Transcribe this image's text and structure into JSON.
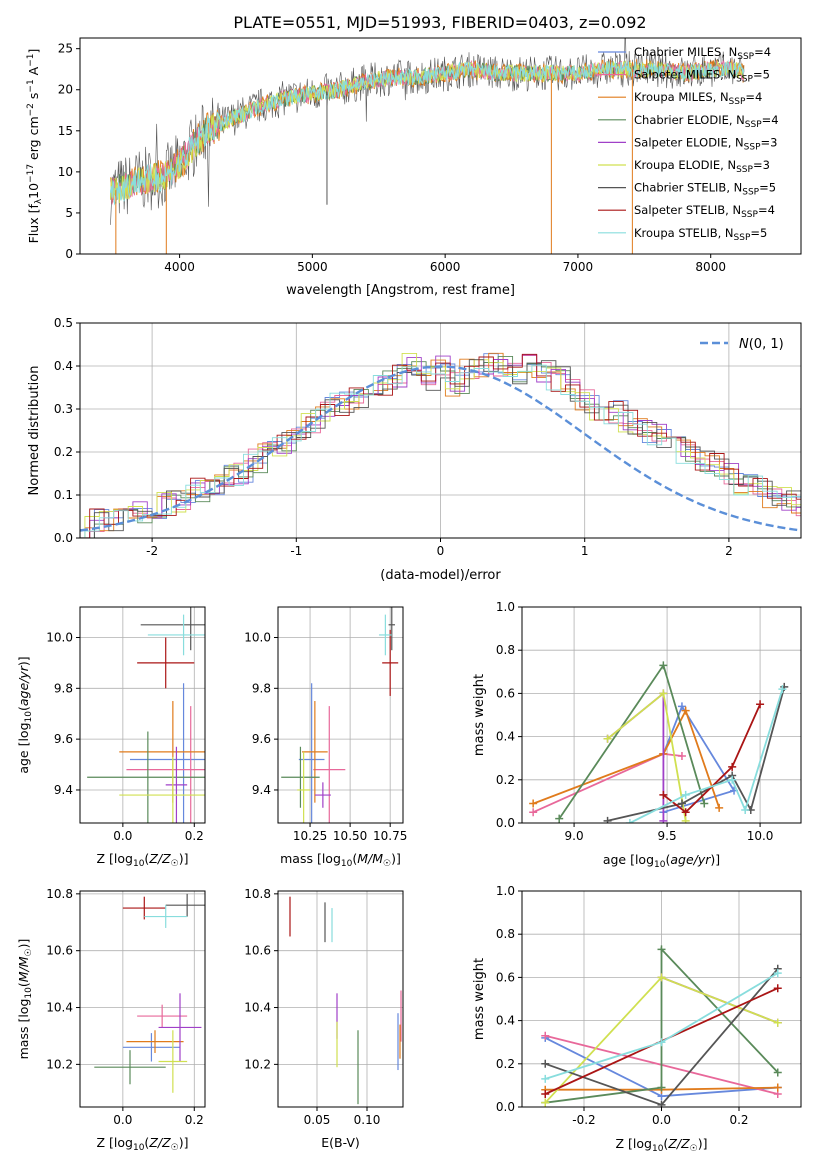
{
  "figure_title": "PLATE=0551, MJD=51993, FIBERID=0403, z=0.092",
  "colors": {
    "Chabrier MILES": "#6688dd",
    "Salpeter MILES": "#e8689a",
    "Kroupa MILES": "#e07b1c",
    "Chabrier ELODIE": "#5a8a5a",
    "Salpeter ELODIE": "#a040c8",
    "Kroupa ELODIE": "#d0e050",
    "Chabrier STELIB": "#555555",
    "Salpeter STELIB": "#aa1515",
    "Kroupa STELIB": "#88dddd",
    "normal_curve": "#5b8fd8"
  },
  "chart_data": [
    {
      "type": "line",
      "panel": "spectrum",
      "xlabel": "wavelength [Angstrom, rest frame]",
      "ylabel": "Flux [f_λ 10^-17 erg cm^-2 s^-1 A^-1]",
      "xlim": [
        3250,
        8680
      ],
      "ylim": [
        0,
        26.3
      ],
      "xticks": [
        4000,
        5000,
        6000,
        7000,
        8000
      ],
      "yticks": [
        0,
        5,
        10,
        15,
        20,
        25
      ],
      "grid": false,
      "legend_position": "top-right",
      "legend": [
        {
          "label": "Chabrier MILES, N",
          "sub": "SSP",
          "suffix": "=4"
        },
        {
          "label": "Salpeter MILES, N",
          "sub": "SSP",
          "suffix": "=5"
        },
        {
          "label": "Kroupa MILES, N",
          "sub": "SSP",
          "suffix": "=4"
        },
        {
          "label": "Chabrier ELODIE, N",
          "sub": "SSP",
          "suffix": "=4"
        },
        {
          "label": "Salpeter ELODIE, N",
          "sub": "SSP",
          "suffix": "=3"
        },
        {
          "label": "Kroupa ELODIE, N",
          "sub": "SSP",
          "suffix": "=3"
        },
        {
          "label": "Chabrier STELIB, N",
          "sub": "SSP",
          "suffix": "=5"
        },
        {
          "label": "Salpeter STELIB, N",
          "sub": "SSP",
          "suffix": "=4"
        },
        {
          "label": "Kroupa STELIB, N",
          "sub": "SSP",
          "suffix": "=5"
        }
      ],
      "continuum": {
        "x": [
          3480,
          3700,
          3900,
          4000,
          4200,
          4400,
          4600,
          4800,
          5000,
          5200,
          5400,
          5600,
          5800,
          6000,
          6200,
          6400,
          6600,
          6800,
          7000,
          7200,
          7400,
          7600,
          7800,
          8000,
          8200,
          8250
        ],
        "y": [
          7.5,
          9,
          9.5,
          11,
          15,
          16.5,
          18,
          19,
          19.5,
          20,
          21,
          21.5,
          21.5,
          22,
          22.5,
          22,
          22,
          22,
          22,
          22.5,
          22.5,
          22.5,
          22,
          22.5,
          22.5,
          22
        ]
      }
    },
    {
      "type": "histogram",
      "panel": "residuals",
      "xlabel": "(data-model)/error",
      "ylabel": "Normed distribution",
      "xlim": [
        -2.5,
        2.5
      ],
      "ylim": [
        0,
        0.5
      ],
      "xticks": [
        -2,
        -1,
        0,
        1,
        2
      ],
      "yticks": [
        0.0,
        0.1,
        0.2,
        0.3,
        0.4,
        0.5
      ],
      "grid": true,
      "legend_position": "top-right",
      "legend": [
        {
          "label": "N(0,1)"
        }
      ],
      "bin_width": 0.1,
      "reference_bins": {
        "x_start": -2.5,
        "values": [
          0.03,
          0.04,
          0.04,
          0.05,
          0.06,
          0.07,
          0.08,
          0.09,
          0.11,
          0.12,
          0.14,
          0.15,
          0.18,
          0.2,
          0.22,
          0.25,
          0.27,
          0.3,
          0.31,
          0.32,
          0.35,
          0.36,
          0.38,
          0.4,
          0.37,
          0.4,
          0.36,
          0.39,
          0.4,
          0.4,
          0.38,
          0.4,
          0.39,
          0.37,
          0.34,
          0.32,
          0.3,
          0.29,
          0.27,
          0.25,
          0.24,
          0.22,
          0.2,
          0.18,
          0.17,
          0.15,
          0.13,
          0.12,
          0.1,
          0.09,
          0.08,
          0.07,
          0.06,
          0.05,
          0.04,
          0.03,
          0.03
        ]
      }
    },
    {
      "type": "scatter",
      "panel": "age-vs-Z",
      "xlabel": "Z [log10(Z/Z☉)]",
      "ylabel": "age [log10(age/yr)]",
      "xlim": [
        -0.12,
        0.23
      ],
      "ylim": [
        9.27,
        10.12
      ],
      "xticks": [
        0.0,
        0.2
      ],
      "yticks": [
        9.4,
        9.6,
        9.8,
        10.0
      ],
      "grid": true,
      "points": [
        {
          "series": "Chabrier MILES",
          "x": 0.17,
          "y": 9.52,
          "xerr": 0.15,
          "yerr": 0.3
        },
        {
          "series": "Salpeter MILES",
          "x": 0.19,
          "y": 9.48,
          "xerr": 0.18,
          "yerr": 0.25
        },
        {
          "series": "Kroupa MILES",
          "x": 0.14,
          "y": 9.55,
          "xerr": 0.15,
          "yerr": 0.2
        },
        {
          "series": "Chabrier ELODIE",
          "x": 0.07,
          "y": 9.45,
          "xerr": 0.17,
          "yerr": 0.18
        },
        {
          "series": "Salpeter ELODIE",
          "x": 0.15,
          "y": 9.42,
          "xerr": 0.03,
          "yerr": 0.15
        },
        {
          "series": "Kroupa ELODIE",
          "x": 0.14,
          "y": 9.38,
          "xerr": 0.15,
          "yerr": 0.15
        },
        {
          "series": "Chabrier STELIB",
          "x": 0.19,
          "y": 10.05,
          "xerr": 0.14,
          "yerr": 0.1
        },
        {
          "series": "Salpeter STELIB",
          "x": 0.12,
          "y": 9.9,
          "xerr": 0.08,
          "yerr": 0.1
        },
        {
          "series": "Kroupa STELIB",
          "x": 0.17,
          "y": 10.01,
          "xerr": 0.1,
          "yerr": 0.08
        }
      ]
    },
    {
      "type": "scatter",
      "panel": "age-vs-mass",
      "xlabel": "mass [log10(M/M☉)]",
      "ylabel": "",
      "xlim": [
        10.05,
        10.83
      ],
      "ylim": [
        9.27,
        10.12
      ],
      "xticks": [
        10.25,
        10.5,
        10.75
      ],
      "yticks": [
        9.4,
        9.6,
        9.8,
        10.0
      ],
      "grid": true,
      "points": [
        {
          "series": "Chabrier MILES",
          "x": 10.26,
          "y": 9.52,
          "xerr": 0.08,
          "yerr": 0.3
        },
        {
          "series": "Salpeter MILES",
          "x": 10.37,
          "y": 9.48,
          "xerr": 0.1,
          "yerr": 0.25
        },
        {
          "series": "Kroupa MILES",
          "x": 10.28,
          "y": 9.55,
          "xerr": 0.08,
          "yerr": 0.2
        },
        {
          "series": "Chabrier ELODIE",
          "x": 10.19,
          "y": 9.45,
          "xerr": 0.12,
          "yerr": 0.12
        },
        {
          "series": "Salpeter ELODIE",
          "x": 10.33,
          "y": 9.38,
          "xerr": 0.05,
          "yerr": 0.05
        },
        {
          "series": "Kroupa ELODIE",
          "x": 10.21,
          "y": 9.4,
          "xerr": 0.04,
          "yerr": 0.15
        },
        {
          "series": "Chabrier STELIB",
          "x": 10.76,
          "y": 10.05,
          "xerr": 0.02,
          "yerr": 0.1
        },
        {
          "series": "Salpeter STELIB",
          "x": 10.75,
          "y": 9.9,
          "xerr": 0.05,
          "yerr": 0.13
        },
        {
          "series": "Kroupa STELIB",
          "x": 10.72,
          "y": 10.01,
          "xerr": 0.04,
          "yerr": 0.08
        }
      ]
    },
    {
      "type": "line",
      "panel": "mass-weight-vs-age",
      "xlabel": "age [log10(age/yr)]",
      "ylabel": "mass weight",
      "xlim": [
        8.72,
        10.22
      ],
      "ylim": [
        0,
        1.0
      ],
      "xticks": [
        9.0,
        9.5,
        10.0
      ],
      "yticks": [
        0.0,
        0.2,
        0.4,
        0.6,
        0.8,
        1.0
      ],
      "grid": true,
      "series": [
        {
          "name": "Chabrier MILES",
          "x": [
            9.48,
            9.58,
            9.86,
            9.48
          ],
          "y": [
            0.32,
            0.54,
            0.15,
            0.05
          ]
        },
        {
          "name": "Salpeter MILES",
          "x": [
            8.78,
            9.48,
            9.58,
            9.48
          ],
          "y": [
            0.05,
            0.32,
            0.31,
            0.32
          ]
        },
        {
          "name": "Kroupa MILES",
          "x": [
            8.78,
            9.48,
            9.6,
            9.78
          ],
          "y": [
            0.09,
            0.32,
            0.52,
            0.07
          ]
        },
        {
          "name": "Chabrier ELODIE",
          "x": [
            8.92,
            9.48,
            9.7
          ],
          "y": [
            0.02,
            0.73,
            0.09
          ]
        },
        {
          "name": "Salpeter ELODIE",
          "x": [
            9.18,
            9.48,
            9.48
          ],
          "y": [
            0.39,
            0.6,
            0.01
          ]
        },
        {
          "name": "Kroupa ELODIE",
          "x": [
            9.18,
            9.48,
            9.6
          ],
          "y": [
            0.39,
            0.6,
            0.01
          ]
        },
        {
          "name": "Chabrier STELIB",
          "x": [
            9.18,
            9.58,
            9.85,
            9.95,
            10.13
          ],
          "y": [
            0.01,
            0.09,
            0.22,
            0.06,
            0.63
          ]
        },
        {
          "name": "Salpeter STELIB",
          "x": [
            9.48,
            9.6,
            9.85,
            10.0
          ],
          "y": [
            0.13,
            0.05,
            0.26,
            0.55
          ]
        },
        {
          "name": "Kroupa STELIB",
          "x": [
            9.3,
            9.6,
            9.85,
            9.92,
            10.12
          ],
          "y": [
            0.0,
            0.13,
            0.2,
            0.06,
            0.62
          ]
        }
      ]
    },
    {
      "type": "scatter",
      "panel": "mass-vs-Z",
      "xlabel": "Z [log10(Z/Z☉)]",
      "ylabel": "mass [log10(M/M☉)]",
      "xlim": [
        -0.12,
        0.23
      ],
      "ylim": [
        10.05,
        10.81
      ],
      "xticks": [
        0.0,
        0.2
      ],
      "yticks": [
        10.2,
        10.4,
        10.6,
        10.8
      ],
      "grid": true,
      "points": [
        {
          "series": "Chabrier MILES",
          "x": 0.08,
          "y": 10.26,
          "xerr": 0.08,
          "yerr": 0.05
        },
        {
          "series": "Salpeter MILES",
          "x": 0.11,
          "y": 10.37,
          "xerr": 0.07,
          "yerr": 0.04
        },
        {
          "series": "Kroupa MILES",
          "x": 0.09,
          "y": 10.28,
          "xerr": 0.08,
          "yerr": 0.04
        },
        {
          "series": "Chabrier ELODIE",
          "x": 0.02,
          "y": 10.19,
          "xerr": 0.1,
          "yerr": 0.06
        },
        {
          "series": "Salpeter ELODIE",
          "x": 0.16,
          "y": 10.33,
          "xerr": 0.06,
          "yerr": 0.12
        },
        {
          "series": "Kroupa ELODIE",
          "x": 0.14,
          "y": 10.21,
          "xerr": 0.04,
          "yerr": 0.11
        },
        {
          "series": "Chabrier STELIB",
          "x": 0.18,
          "y": 10.76,
          "xerr": 0.06,
          "yerr": 0.04
        },
        {
          "series": "Salpeter STELIB",
          "x": 0.06,
          "y": 10.75,
          "xerr": 0.06,
          "yerr": 0.04
        },
        {
          "series": "Kroupa STELIB",
          "x": 0.12,
          "y": 10.72,
          "xerr": 0.06,
          "yerr": 0.04
        }
      ]
    },
    {
      "type": "scatter",
      "panel": "mass-vs-ebv",
      "xlabel": "E(B-V)",
      "ylabel": "",
      "xlim": [
        0.011,
        0.136
      ],
      "ylim": [
        10.05,
        10.81
      ],
      "xticks": [
        0.05,
        0.1
      ],
      "yticks": [
        10.2,
        10.4,
        10.6,
        10.8
      ],
      "grid": true,
      "points": [
        {
          "series": "Chabrier MILES",
          "x": 0.131,
          "y": 10.28,
          "yerr": 0.1
        },
        {
          "series": "Salpeter MILES",
          "x": 0.134,
          "y": 10.37,
          "yerr": 0.09
        },
        {
          "series": "Kroupa MILES",
          "x": 0.133,
          "y": 10.28,
          "yerr": 0.06
        },
        {
          "series": "Chabrier ELODIE",
          "x": 0.091,
          "y": 10.19,
          "yerr": 0.13
        },
        {
          "series": "Salpeter ELODIE",
          "x": 0.07,
          "y": 10.37,
          "yerr": 0.08
        },
        {
          "series": "Kroupa ELODIE",
          "x": 0.07,
          "y": 10.27,
          "yerr": 0.08
        },
        {
          "series": "Chabrier STELIB",
          "x": 0.058,
          "y": 10.7,
          "yerr": 0.07
        },
        {
          "series": "Salpeter STELIB",
          "x": 0.023,
          "y": 10.72,
          "yerr": 0.07
        },
        {
          "series": "Kroupa STELIB",
          "x": 0.065,
          "y": 10.69,
          "yerr": 0.06
        }
      ]
    },
    {
      "type": "line",
      "panel": "mass-weight-vs-Z",
      "xlabel": "Z [log10(Z/Z☉)]",
      "ylabel": "mass weight",
      "xlim": [
        -0.36,
        0.36
      ],
      "ylim": [
        0,
        1.0
      ],
      "xticks": [
        -0.2,
        0.0,
        0.2
      ],
      "yticks": [
        0.0,
        0.2,
        0.4,
        0.6,
        0.8,
        1.0
      ],
      "grid": true,
      "series": [
        {
          "name": "Chabrier MILES",
          "x": [
            -0.3,
            0.0,
            0.3
          ],
          "y": [
            0.32,
            0.05,
            0.09
          ]
        },
        {
          "name": "Salpeter MILES",
          "x": [
            -0.3,
            0.3
          ],
          "y": [
            0.33,
            0.06
          ]
        },
        {
          "name": "Kroupa MILES",
          "x": [
            -0.3,
            0.0,
            0.3
          ],
          "y": [
            0.08,
            0.08,
            0.09
          ]
        },
        {
          "name": "Chabrier ELODIE",
          "x": [
            -0.3,
            0.0,
            0.0,
            0.3
          ],
          "y": [
            0.02,
            0.09,
            0.73,
            0.16
          ]
        },
        {
          "name": "Salpeter ELODIE",
          "x": [
            0.0,
            0.3
          ],
          "y": [
            0.6,
            0.39
          ]
        },
        {
          "name": "Kroupa ELODIE",
          "x": [
            -0.3,
            0.0,
            0.3
          ],
          "y": [
            0.02,
            0.6,
            0.39
          ]
        },
        {
          "name": "Chabrier STELIB",
          "x": [
            -0.3,
            0.0,
            0.3
          ],
          "y": [
            0.2,
            0.01,
            0.64
          ]
        },
        {
          "name": "Salpeter STELIB",
          "x": [
            -0.3,
            0.3
          ],
          "y": [
            0.06,
            0.55
          ]
        },
        {
          "name": "Kroupa STELIB",
          "x": [
            -0.3,
            0.0,
            0.3
          ],
          "y": [
            0.13,
            0.3,
            0.62
          ]
        }
      ]
    }
  ]
}
